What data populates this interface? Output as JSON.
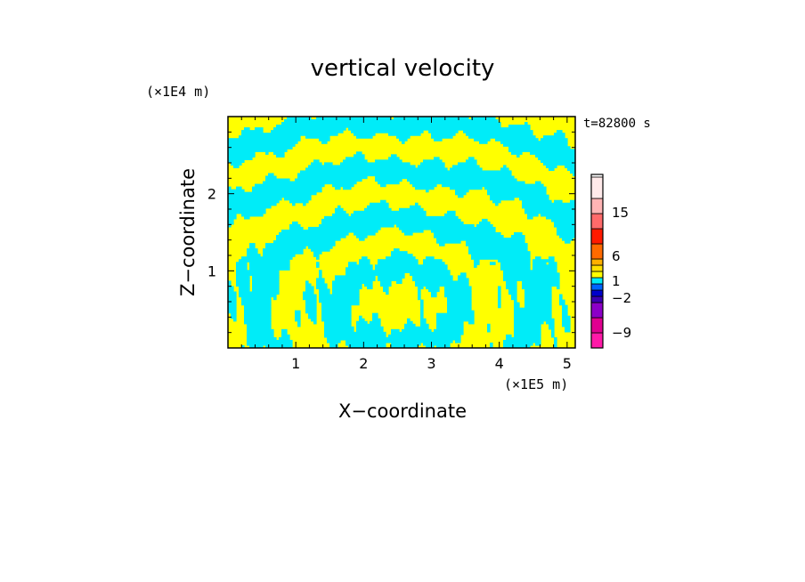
{
  "chart_data": {
    "type": "heatmap",
    "title": "vertical velocity",
    "xlabel": "X−coordinate",
    "ylabel": "Z−coordinate",
    "x_unit": "(×1E5 m)",
    "y_unit": "(×1E4 m)",
    "time_label": "t=82800 s",
    "x_ticks": [
      "1",
      "2",
      "3",
      "4",
      "5"
    ],
    "y_ticks": [
      "1",
      "2"
    ],
    "xlim": [
      0,
      5.12
    ],
    "ylim": [
      0,
      3
    ],
    "grid": false,
    "field_colors": {
      "positive": "#ffff00",
      "negative": "#00ecf8"
    },
    "colorbar": {
      "labels": [
        "15",
        "6",
        "1",
        "−2",
        "−9"
      ],
      "levels": [
        {
          "color": "#ff1aa8"
        },
        {
          "color": "#e00090"
        },
        {
          "color": "#8c00c8"
        },
        {
          "color": "#3c00b4"
        },
        {
          "color": "#0000cc"
        },
        {
          "color": "#0064ff"
        },
        {
          "color": "#00ecf8"
        },
        {
          "color": "#ffff00"
        },
        {
          "color": "#ffe000"
        },
        {
          "color": "#ffb000"
        },
        {
          "color": "#ff6a00"
        },
        {
          "color": "#ff1a00"
        },
        {
          "color": "#ff6a6a"
        },
        {
          "color": "#ffb4b4"
        },
        {
          "color": "#ffeaea"
        }
      ]
    }
  }
}
